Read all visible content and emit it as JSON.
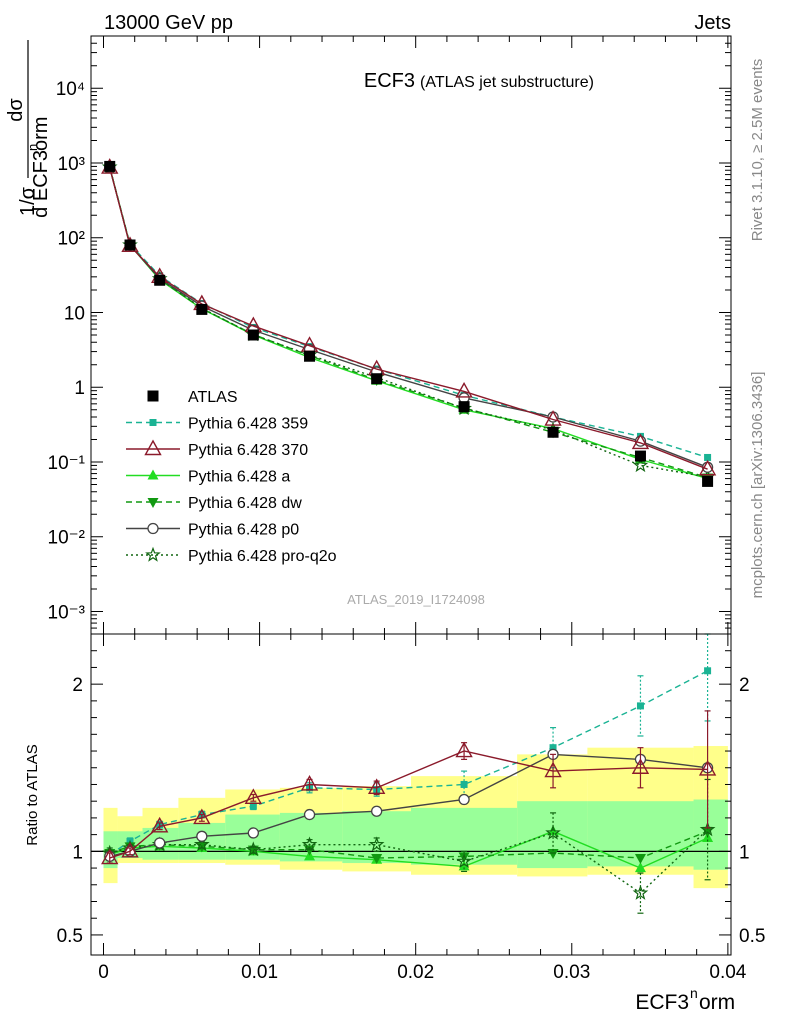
{
  "header": {
    "left": "13000 GeV pp",
    "right": "Jets"
  },
  "side_labels": {
    "rivet": "Rivet 3.1.10, ≥ 2.5M events",
    "mcplots": "mcplots.cern.ch [arXiv:1306.3436]"
  },
  "colors": {
    "data": "#000000",
    "p359": "#1ab394",
    "p370": "#8b1a2b",
    "pa": "#22dd22",
    "pdw": "#119911",
    "pp0": "#444444",
    "pq2o": "#116611",
    "band_outer": "#ffff8a",
    "band_inner": "#99ff99"
  },
  "chart_data": [
    {
      "id": "main",
      "type": "line",
      "yscale": "log",
      "title": "ECF3",
      "subtitle": "(ATLAS jet substructure)",
      "watermark": "ATLAS_2019_I1724098",
      "ylabel_parts": {
        "prefix": "1/σ",
        "num": "dσ",
        "den": "d ECF3",
        "sup": "n",
        "den_suffix": "orm"
      },
      "ylim": [
        0.0005,
        50000
      ],
      "ytick_labels": [
        "10⁻³",
        "10⁻²",
        "10⁻¹",
        "1",
        "10",
        "10²",
        "10³",
        "10⁴"
      ],
      "ytick_values": [
        0.001,
        0.01,
        0.1,
        1,
        10,
        100,
        1000,
        10000
      ],
      "x": [
        0.0004,
        0.0017,
        0.0036,
        0.0063,
        0.0096,
        0.0132,
        0.0175,
        0.0231,
        0.0288,
        0.0344,
        0.0387
      ],
      "series": [
        {
          "key": "data",
          "name": "ATLAS",
          "values": [
            900,
            80,
            27,
            11,
            5.0,
            2.6,
            1.3,
            0.55,
            0.25,
            0.12,
            0.055
          ]
        },
        {
          "key": "p359",
          "name": "Pythia 6.428 359",
          "values": [
            880,
            82,
            31,
            13.2,
            6.3,
            3.5,
            1.75,
            0.78,
            0.4,
            0.22,
            0.115
          ]
        },
        {
          "key": "p370",
          "name": "Pythia 6.428 370",
          "values": [
            870,
            78,
            30,
            13.0,
            6.6,
            3.6,
            1.75,
            0.88,
            0.37,
            0.18,
            0.08
          ]
        },
        {
          "key": "pa",
          "name": "Pythia 6.428 a",
          "values": [
            880,
            80,
            27.5,
            11.2,
            5.0,
            2.5,
            1.22,
            0.5,
            0.28,
            0.108,
            0.06
          ]
        },
        {
          "key": "pdw",
          "name": "Pythia 6.428 dw",
          "values": [
            885,
            81,
            28,
            11.3,
            5.1,
            2.65,
            1.25,
            0.53,
            0.25,
            0.115,
            0.062
          ]
        },
        {
          "key": "pp0",
          "name": "Pythia 6.428 p0",
          "values": [
            870,
            79,
            28.5,
            12.2,
            5.8,
            3.2,
            1.6,
            0.72,
            0.4,
            0.19,
            0.085
          ]
        },
        {
          "key": "pq2o",
          "name": "Pythia 6.428 pro-q2o",
          "values": [
            880,
            80,
            28.2,
            11.4,
            5.05,
            2.7,
            1.35,
            0.52,
            0.27,
            0.09,
            0.063
          ]
        }
      ]
    },
    {
      "id": "ratio",
      "type": "line",
      "ylabel": "Ratio to ATLAS",
      "xlabel": "ECF3",
      "xlabel_sup": "n",
      "xlabel_suffix": "orm",
      "xlim": [
        -0.0008,
        0.0402
      ],
      "ylim": [
        0.38,
        2.3
      ],
      "xtick_values": [
        0,
        0.01,
        0.02,
        0.03,
        0.04
      ],
      "xtick_labels": [
        "0",
        "0.01",
        "0.02",
        "0.03",
        "0.04"
      ],
      "ytick_values": [
        0.5,
        1,
        2
      ],
      "ytick_labels": [
        "0.5",
        "1",
        "2"
      ],
      "bin_edges": [
        0.0,
        0.0009,
        0.0025,
        0.0048,
        0.0078,
        0.0113,
        0.0153,
        0.0197,
        0.0265,
        0.031,
        0.0378,
        0.04
      ],
      "band_outer": [
        [
          0.81,
          1.26
        ],
        [
          0.93,
          1.21
        ],
        [
          0.93,
          1.26
        ],
        [
          0.93,
          1.32
        ],
        [
          0.92,
          1.37
        ],
        [
          0.89,
          1.38
        ],
        [
          0.88,
          1.39
        ],
        [
          0.86,
          1.45
        ],
        [
          0.85,
          1.58
        ],
        [
          0.86,
          1.62
        ],
        [
          0.78,
          1.63
        ]
      ],
      "band_inner": [
        [
          0.9,
          1.12
        ],
        [
          0.96,
          1.12
        ],
        [
          0.95,
          1.14
        ],
        [
          0.95,
          1.17
        ],
        [
          0.95,
          1.22
        ],
        [
          0.94,
          1.23
        ],
        [
          0.93,
          1.24
        ],
        [
          0.92,
          1.26
        ],
        [
          0.9,
          1.3
        ],
        [
          0.91,
          1.3
        ],
        [
          0.89,
          1.31
        ]
      ],
      "series": [
        {
          "key": "p359",
          "name": "Pythia 6.428 359",
          "values": [
            0.98,
            1.06,
            1.16,
            1.22,
            1.27,
            1.38,
            1.37,
            1.4,
            1.62,
            1.87,
            2.08
          ]
        },
        {
          "key": "p370",
          "name": "Pythia 6.428 370",
          "values": [
            0.96,
            1.0,
            1.15,
            1.2,
            1.32,
            1.4,
            1.38,
            1.6,
            1.48,
            1.5,
            1.49
          ]
        },
        {
          "key": "pa",
          "name": "Pythia 6.428 a",
          "values": [
            0.98,
            1.02,
            1.03,
            1.02,
            1.0,
            0.97,
            0.95,
            0.91,
            1.12,
            0.9,
            1.08
          ]
        },
        {
          "key": "pdw",
          "name": "Pythia 6.428 dw",
          "values": [
            0.99,
            1.03,
            1.04,
            1.03,
            1.01,
            1.01,
            0.96,
            0.97,
            0.99,
            0.96,
            1.12
          ]
        },
        {
          "key": "pp0",
          "name": "Pythia 6.428 p0",
          "values": [
            0.97,
            1.0,
            1.05,
            1.09,
            1.11,
            1.22,
            1.24,
            1.31,
            1.58,
            1.55,
            1.5
          ]
        },
        {
          "key": "pq2o",
          "name": "Pythia 6.428 pro-q2o",
          "values": [
            0.99,
            1.02,
            1.04,
            1.04,
            1.01,
            1.04,
            1.04,
            0.94,
            1.11,
            0.75,
            1.13
          ]
        }
      ],
      "error_bars": {
        "p359": [
          0.03,
          0.02,
          0.02,
          0.02,
          0.02,
          0.03,
          0.04,
          0.08,
          0.12,
          0.18,
          0.3
        ],
        "p370": [
          0.03,
          0.02,
          0.02,
          0.02,
          0.02,
          0.03,
          0.04,
          0.05,
          0.1,
          0.12,
          0.35
        ],
        "pq2o": [
          0.03,
          0.02,
          0.02,
          0.02,
          0.02,
          0.03,
          0.04,
          0.06,
          0.12,
          0.12,
          0.3
        ]
      }
    }
  ]
}
